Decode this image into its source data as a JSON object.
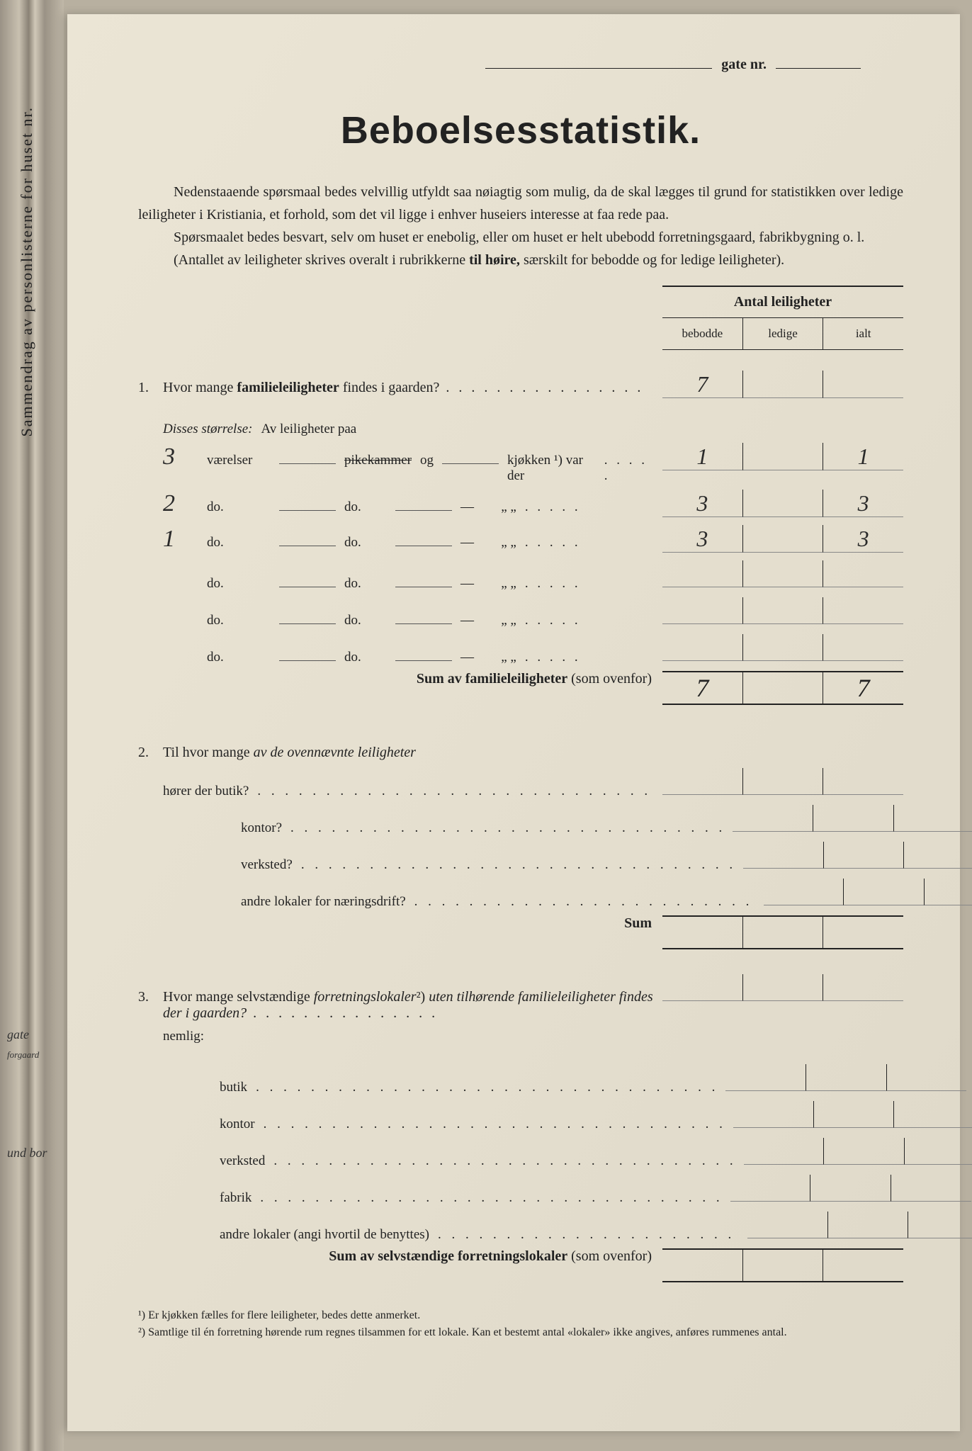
{
  "left_margin": {
    "vertical": "Sammendrag av personlisterne for huset nr.",
    "gate": "gate",
    "forgaard": "forgaard",
    "und_bor": "und bor"
  },
  "header": {
    "gate_nr": "gate nr."
  },
  "title": "Beboelsesstatistik.",
  "intro": {
    "p1_prefix": "Nedenstaaende spørsmaal bedes velvillig utfyldt saa nøiagtig som mulig, da de skal lægges til grund for statistikken over ledige leiligheter i Kristiania, et forhold, som det vil ligge i enhver huseiers interesse at faa rede paa.",
    "p2": "Spørsmaalet bedes besvart, selv om huset er enebolig, eller om huset er helt ubebodd forretningsgaard, fabrikbygning o. l.",
    "p3a": "(Antallet av leiligheter skrives overalt i rubrikkerne ",
    "p3b": "til høire,",
    "p3c": " særskilt for bebodde og for ledige leiligheter)."
  },
  "col_headers": {
    "main": "Antal leiligheter",
    "c1": "bebodde",
    "c2": "ledige",
    "c3": "ialt"
  },
  "q1": {
    "num": "1.",
    "text": "Hvor mange ",
    "bold": "familieleiligheter",
    "text2": " findes i gaarden?",
    "val_bebodde": "7",
    "disses": "Disses størrelse:",
    "av": "Av leiligheter paa",
    "rows": [
      {
        "hw": "3",
        "w1": "værelser",
        "strike": "pikekammer",
        "og": "og",
        "w2": "kjøkken ¹) var der",
        "v1": "1",
        "v2": "",
        "v3": "1"
      },
      {
        "hw": "2",
        "w1": "do.",
        "w2": "do.",
        "dash": "—",
        "quotes": "„    „",
        "v1": "3",
        "v2": "",
        "v3": "3"
      },
      {
        "hw": "1",
        "w1": "do.",
        "w2": "do.",
        "dash": "—",
        "quotes": "„    „",
        "v1": "3",
        "v2": "",
        "v3": "3"
      },
      {
        "hw": "",
        "w1": "do.",
        "w2": "do.",
        "dash": "—",
        "quotes": "„    „",
        "v1": "",
        "v2": "",
        "v3": ""
      },
      {
        "hw": "",
        "w1": "do.",
        "w2": "do.",
        "dash": "—",
        "quotes": "„    „",
        "v1": "",
        "v2": "",
        "v3": ""
      },
      {
        "hw": "",
        "w1": "do.",
        "w2": "do.",
        "dash": "—",
        "quotes": "„    „",
        "v1": "",
        "v2": "",
        "v3": ""
      }
    ],
    "sum_label": "Sum av familieleiligheter",
    "sum_suffix": " (som ovenfor)",
    "sum_v1": "7",
    "sum_v3": "7"
  },
  "q2": {
    "num": "2.",
    "text": "Til hvor mange ",
    "italic": "av de ovennævnte leiligheter",
    "rows": [
      {
        "label": "hører der butik?"
      },
      {
        "label": "kontor?"
      },
      {
        "label": "verksted?"
      },
      {
        "label": "andre lokaler for næringsdrift?"
      }
    ],
    "sum": "Sum"
  },
  "q3": {
    "num": "3.",
    "text1": "Hvor mange selvstændige ",
    "italic1": "forretningslokaler",
    "sup": "²)",
    "italic2": " uten tilhørende familieleiligheter findes der i gaarden?",
    "nemlig": "nemlig:",
    "rows": [
      {
        "label": "butik"
      },
      {
        "label": "kontor"
      },
      {
        "label": "verksted"
      },
      {
        "label": "fabrik"
      },
      {
        "label": "andre lokaler (angi hvortil de benyttes)"
      }
    ],
    "sum_label": "Sum av selvstændige forretningslokaler",
    "sum_suffix": " (som ovenfor)"
  },
  "footnotes": {
    "f1": "¹)  Er kjøkken fælles for flere leiligheter, bedes dette anmerket.",
    "f2": "²)  Samtlige til én forretning hørende rum regnes tilsammen for ett lokale.  Kan et bestemt antal «lokaler» ikke angives, anføres rummenes antal."
  }
}
